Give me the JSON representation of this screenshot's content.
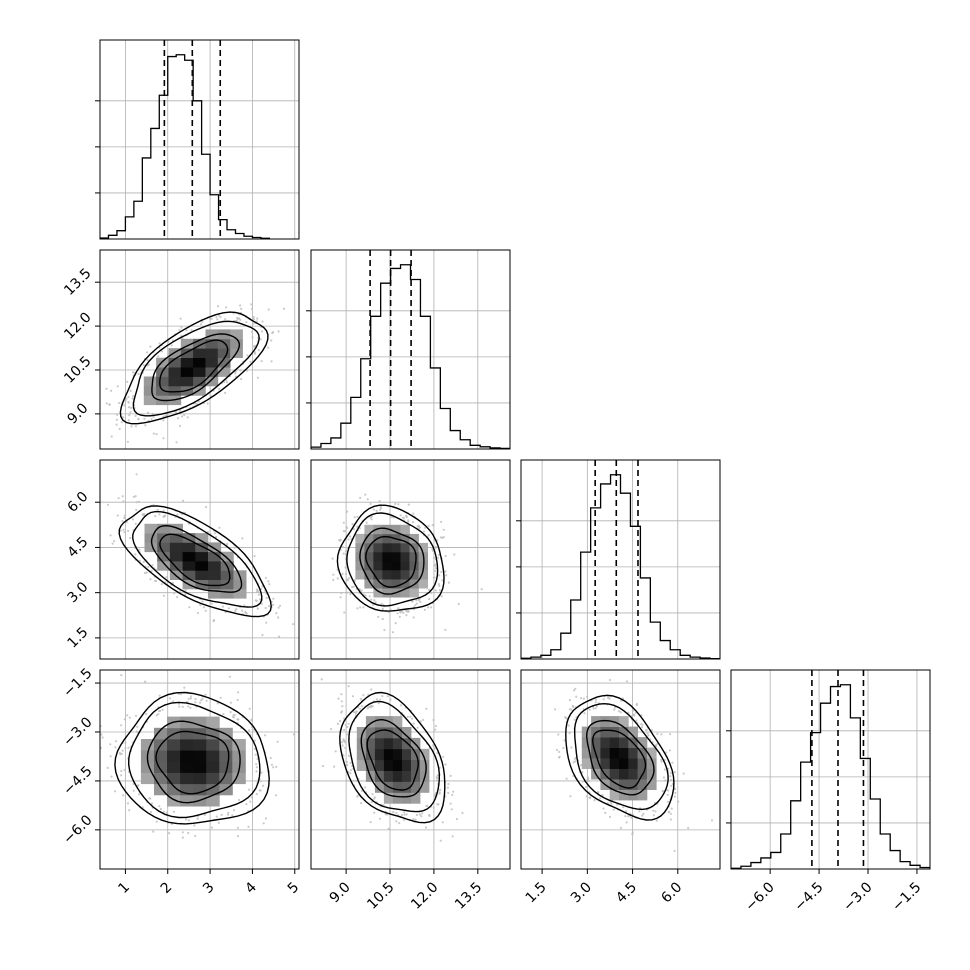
{
  "chart_data": {
    "type": "corner",
    "parameters": [
      "",
      "",
      "",
      ""
    ],
    "ranges": [
      [
        0.4,
        5.1
      ],
      [
        7.8,
        14.6
      ],
      [
        0.8,
        7.4
      ],
      [
        -7.2,
        -1.1
      ]
    ],
    "ticks": [
      [
        1,
        2,
        3,
        4,
        5
      ],
      [
        9.0,
        10.5,
        12.0,
        13.5
      ],
      [
        1.5,
        3.0,
        4.5,
        6.0
      ],
      [
        -6.0,
        -4.5,
        -3.0,
        -1.5
      ]
    ],
    "tick_labels": [
      [
        "1",
        "2",
        "3",
        "4",
        "5"
      ],
      [
        "9.0",
        "10.5",
        "12.0",
        "13.5"
      ],
      [
        "1.5",
        "3.0",
        "4.5",
        "6.0"
      ],
      [
        "−6.0",
        "−4.5",
        "−3.0",
        "−1.5"
      ]
    ],
    "histogram_ymax": [
      1.08,
      1.08,
      1.08,
      1.08
    ],
    "histograms": [
      {
        "param": 0,
        "bin_edges_start": 0.4,
        "bin_width": 0.2,
        "heights": [
          0.005,
          0.02,
          0.045,
          0.12,
          0.205,
          0.44,
          0.6,
          0.78,
          0.99,
          1.0,
          0.97,
          0.75,
          0.46,
          0.24,
          0.105,
          0.05,
          0.03,
          0.015,
          0.008,
          0.004
        ]
      },
      {
        "param": 1,
        "bin_edges_start": 7.8,
        "bin_width": 0.34,
        "heights": [
          0.01,
          0.03,
          0.06,
          0.14,
          0.28,
          0.49,
          0.72,
          0.9,
          0.98,
          1.0,
          0.92,
          0.72,
          0.44,
          0.22,
          0.1,
          0.05,
          0.02,
          0.012,
          0.006,
          0.003
        ]
      },
      {
        "param": 2,
        "bin_edges_start": 0.8,
        "bin_width": 0.33,
        "heights": [
          0.004,
          0.01,
          0.02,
          0.05,
          0.14,
          0.32,
          0.58,
          0.82,
          0.95,
          1.0,
          0.9,
          0.72,
          0.44,
          0.2,
          0.1,
          0.05,
          0.02,
          0.01,
          0.005,
          0.002
        ]
      },
      {
        "param": 3,
        "bin_edges_start": -7.2,
        "bin_width": 0.305,
        "heights": [
          0.004,
          0.015,
          0.035,
          0.06,
          0.09,
          0.19,
          0.37,
          0.58,
          0.74,
          0.9,
          0.99,
          1.0,
          0.82,
          0.6,
          0.38,
          0.19,
          0.1,
          0.04,
          0.02,
          0.008
        ]
      }
    ],
    "quantiles": [
      [
        1.92,
        2.58,
        3.24
      ],
      [
        9.82,
        10.52,
        11.22
      ],
      [
        3.26,
        3.96,
        4.68
      ],
      [
        -4.72,
        -3.92,
        -3.14
      ]
    ],
    "pairs": [
      {
        "x": 0,
        "y": 1,
        "mean": [
          2.6,
          10.6
        ],
        "sd": [
          0.68,
          0.75
        ],
        "rho": 0.65
      },
      {
        "x": 0,
        "y": 2,
        "mean": [
          2.65,
          4.05
        ],
        "sd": [
          0.7,
          0.72
        ],
        "rho": -0.65
      },
      {
        "x": 1,
        "y": 2,
        "mean": [
          10.55,
          4.05
        ],
        "sd": [
          0.72,
          0.7
        ],
        "rho": -0.1
      },
      {
        "x": 0,
        "y": 3,
        "mean": [
          2.6,
          -3.9
        ],
        "sd": [
          0.72,
          0.8
        ],
        "rho": -0.05
      },
      {
        "x": 1,
        "y": 3,
        "mean": [
          10.6,
          -3.85
        ],
        "sd": [
          0.72,
          0.78
        ],
        "rho": -0.35
      },
      {
        "x": 2,
        "y": 3,
        "mean": [
          4.05,
          -3.8
        ],
        "sd": [
          0.72,
          0.75
        ],
        "rho": -0.4
      }
    ],
    "contour_levels_sigma": [
      0.5,
      1.0,
      1.5,
      2.0
    ],
    "grid": true,
    "colors": {
      "line": "#000000",
      "grid": "#b0b0b0",
      "scatter": "#bdbdbd",
      "density_dark": "#000000",
      "density_light": "#ffffff"
    }
  }
}
